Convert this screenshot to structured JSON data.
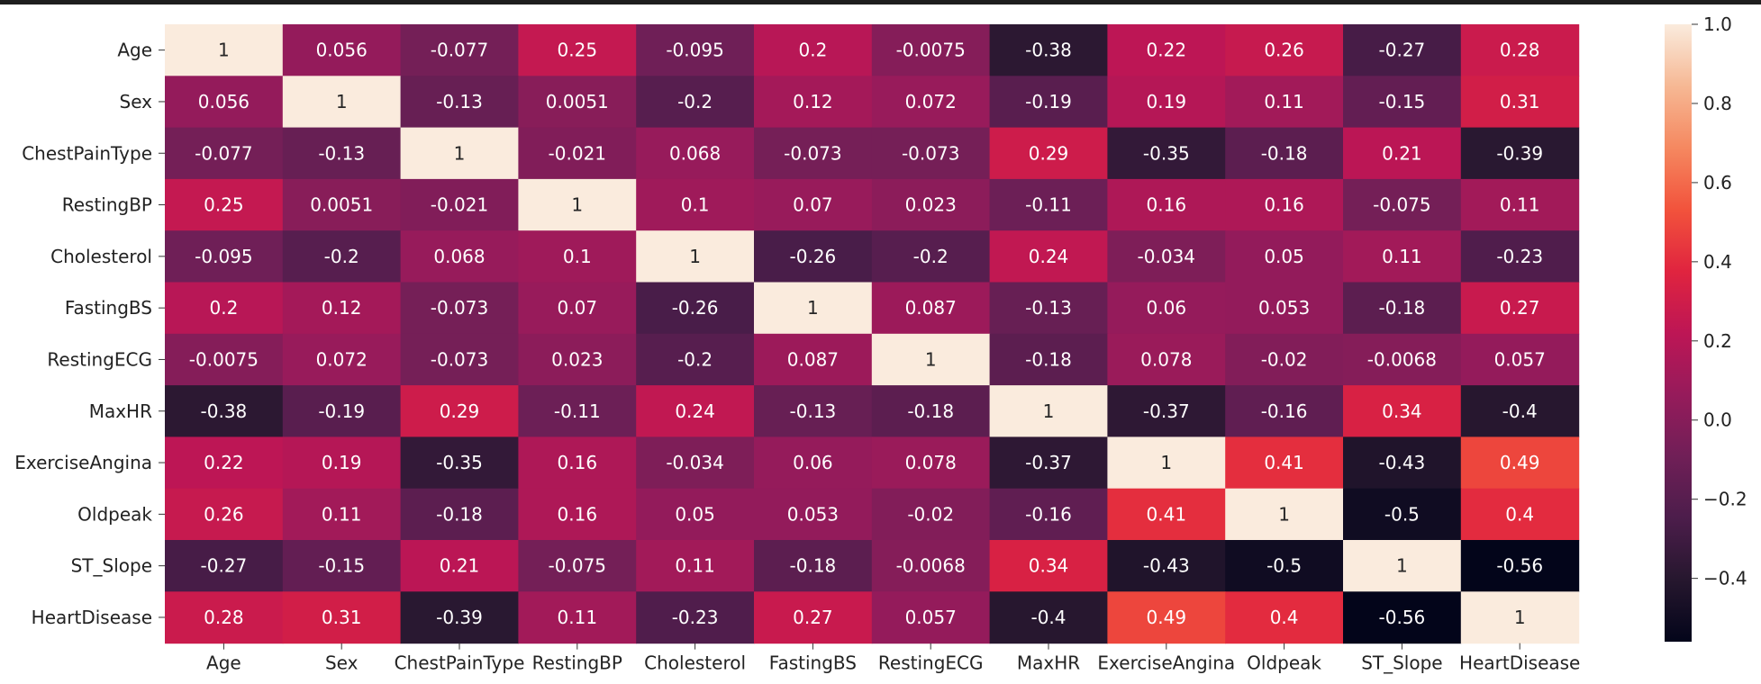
{
  "chart_data": {
    "type": "heatmap",
    "title": "",
    "xlabel": "",
    "ylabel": "",
    "labels": [
      "Age",
      "Sex",
      "ChestPainType",
      "RestingBP",
      "Cholesterol",
      "FastingBS",
      "RestingECG",
      "MaxHR",
      "ExerciseAngina",
      "Oldpeak",
      "ST_Slope",
      "HeartDisease"
    ],
    "values": [
      [
        1,
        0.056,
        -0.077,
        0.25,
        -0.095,
        0.2,
        -0.0075,
        -0.38,
        0.22,
        0.26,
        -0.27,
        0.28
      ],
      [
        0.056,
        1,
        -0.13,
        0.0051,
        -0.2,
        0.12,
        0.072,
        -0.19,
        0.19,
        0.11,
        -0.15,
        0.31
      ],
      [
        -0.077,
        -0.13,
        1,
        -0.021,
        0.068,
        -0.073,
        -0.073,
        0.29,
        -0.35,
        -0.18,
        0.21,
        -0.39
      ],
      [
        0.25,
        0.0051,
        -0.021,
        1,
        0.1,
        0.07,
        0.023,
        -0.11,
        0.16,
        0.16,
        -0.075,
        0.11
      ],
      [
        -0.095,
        -0.2,
        0.068,
        0.1,
        1,
        -0.26,
        -0.2,
        0.24,
        -0.034,
        0.05,
        0.11,
        -0.23
      ],
      [
        0.2,
        0.12,
        -0.073,
        0.07,
        -0.26,
        1,
        0.087,
        -0.13,
        0.06,
        0.053,
        -0.18,
        0.27
      ],
      [
        -0.0075,
        0.072,
        -0.073,
        0.023,
        -0.2,
        0.087,
        1,
        -0.18,
        0.078,
        -0.02,
        -0.0068,
        0.057
      ],
      [
        -0.38,
        -0.19,
        0.29,
        -0.11,
        0.24,
        -0.13,
        -0.18,
        1,
        -0.37,
        -0.16,
        0.34,
        -0.4
      ],
      [
        0.22,
        0.19,
        -0.35,
        0.16,
        -0.034,
        0.06,
        0.078,
        -0.37,
        1,
        0.41,
        -0.43,
        0.49
      ],
      [
        0.26,
        0.11,
        -0.18,
        0.16,
        0.05,
        0.053,
        -0.02,
        -0.16,
        0.41,
        1,
        -0.5,
        0.4
      ],
      [
        -0.27,
        -0.15,
        0.21,
        -0.075,
        0.11,
        -0.18,
        -0.0068,
        0.34,
        -0.43,
        -0.5,
        1,
        -0.56
      ],
      [
        0.28,
        0.31,
        -0.39,
        0.11,
        -0.23,
        0.27,
        0.057,
        -0.4,
        0.49,
        0.4,
        -0.56,
        1
      ]
    ],
    "colormap": "rocket",
    "vmin": -0.56,
    "vmax": 1.0,
    "colorbar_ticks": [
      1.0,
      0.8,
      0.6,
      0.4,
      0.2,
      0.0,
      -0.2,
      -0.4
    ],
    "colorbar_labels": [
      "1.0",
      "0.8",
      "0.6",
      "0.4",
      "0.2",
      "0.0",
      "−0.2",
      "−0.4"
    ]
  }
}
